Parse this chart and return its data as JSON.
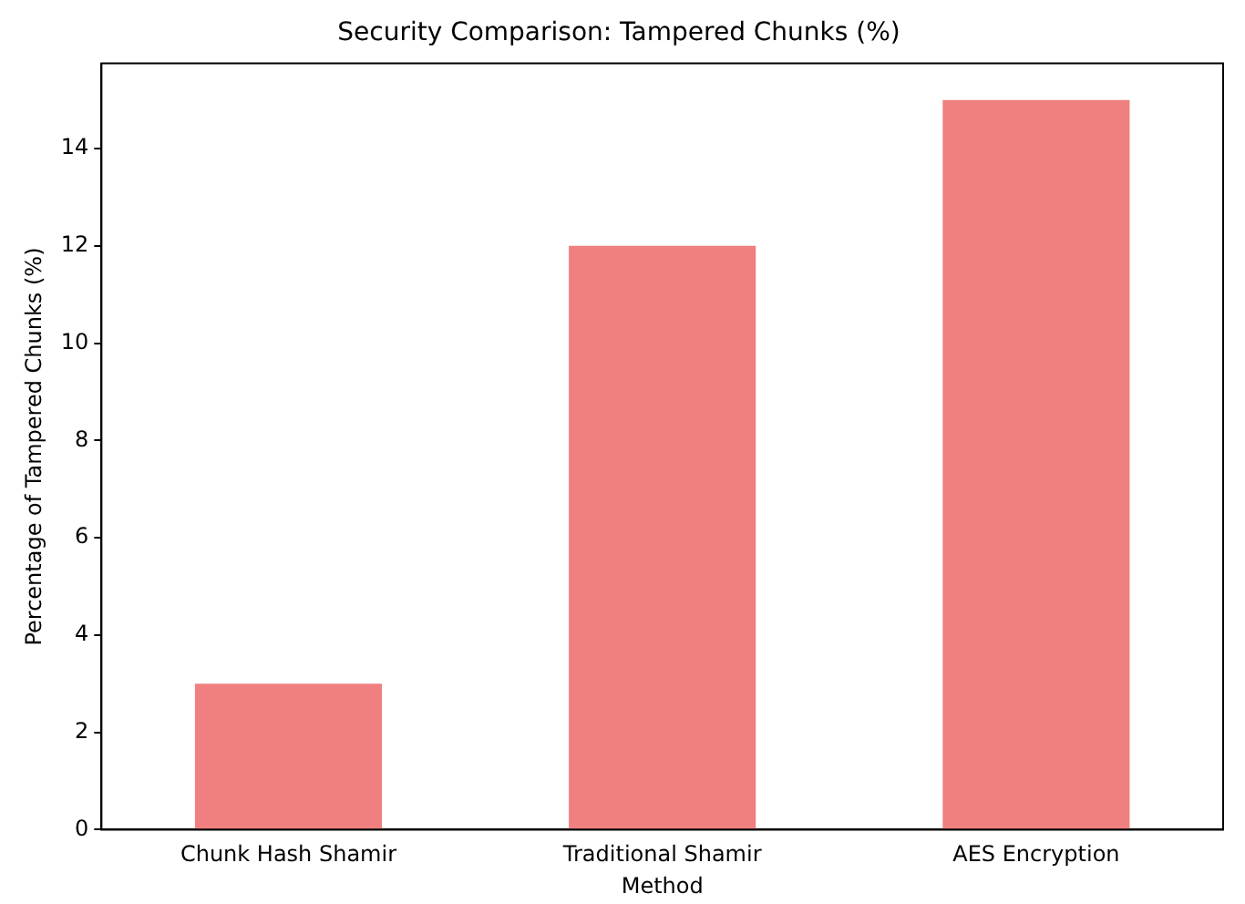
{
  "chart_data": {
    "type": "bar",
    "title": "Security Comparison: Tampered Chunks (%)",
    "xlabel": "Method",
    "ylabel": "Percentage of Tampered Chunks (%)",
    "categories": [
      "Chunk Hash Shamir",
      "Traditional Shamir",
      "AES Encryption"
    ],
    "values": [
      3,
      12,
      15
    ],
    "color": "#f08080",
    "ylim": [
      0,
      15.75
    ],
    "yticks": [
      0,
      2,
      4,
      6,
      8,
      10,
      12,
      14
    ],
    "grid": false,
    "legend": false
  }
}
